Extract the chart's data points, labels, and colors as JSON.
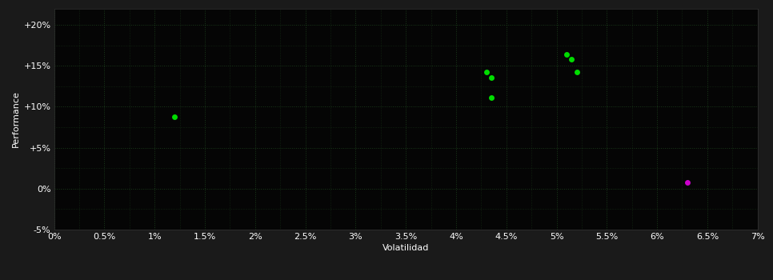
{
  "background_color": "#1a1a1a",
  "plot_bg_color": "#050505",
  "grid_color": "#1a3a1a",
  "text_color": "#ffffff",
  "xlabel": "Volatilidad",
  "ylabel": "Performance",
  "xlim": [
    0.0,
    0.07
  ],
  "ylim": [
    -0.05,
    0.22
  ],
  "xtick_vals": [
    0.0,
    0.005,
    0.01,
    0.015,
    0.02,
    0.025,
    0.03,
    0.035,
    0.04,
    0.045,
    0.05,
    0.055,
    0.06,
    0.065,
    0.07
  ],
  "ytick_vals": [
    -0.05,
    0.0,
    0.05,
    0.1,
    0.15,
    0.2
  ],
  "xtick_labels": [
    "0%",
    "0.5%",
    "1%",
    "1.5%",
    "2%",
    "2.5%",
    "3%",
    "3.5%",
    "4%",
    "4.5%",
    "5%",
    "5.5%",
    "6%",
    "6.5%",
    "7%"
  ],
  "ytick_labels": [
    "-5%",
    "0%",
    "+5%",
    "+10%",
    "+15%",
    "+20%"
  ],
  "green_points": [
    [
      0.012,
      0.088
    ],
    [
      0.043,
      0.142
    ],
    [
      0.0435,
      0.136
    ],
    [
      0.0435,
      0.111
    ],
    [
      0.051,
      0.164
    ],
    [
      0.0515,
      0.158
    ],
    [
      0.052,
      0.142
    ]
  ],
  "magenta_points": [
    [
      0.063,
      0.008
    ]
  ],
  "green_color": "#00dd00",
  "magenta_color": "#cc00cc",
  "marker_size": 5,
  "font_size": 8
}
